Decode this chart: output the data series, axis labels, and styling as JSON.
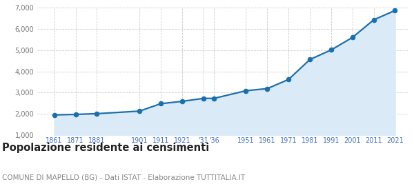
{
  "years": [
    1861,
    1871,
    1881,
    1901,
    1911,
    1921,
    1931,
    1936,
    1951,
    1961,
    1971,
    1981,
    1991,
    2001,
    2011,
    2021
  ],
  "population": [
    1950,
    1975,
    2010,
    2130,
    2480,
    2590,
    2730,
    2730,
    3090,
    3190,
    3620,
    4560,
    5010,
    5600,
    6430,
    6870
  ],
  "ylim": [
    1000,
    7000
  ],
  "yticks": [
    1000,
    2000,
    3000,
    4000,
    5000,
    6000,
    7000
  ],
  "xlim_left": 1853,
  "xlim_right": 2027,
  "line_color": "#1a6faf",
  "fill_color": "#daeaf6",
  "marker_color": "#1a6faf",
  "bg_color": "#ffffff",
  "grid_color": "#cccccc",
  "title": "Popolazione residente ai censimenti",
  "subtitle": "COMUNE DI MAPELLO (BG) - Dati ISTAT - Elaborazione TUTTITALIA.IT",
  "title_color": "#222222",
  "subtitle_color": "#888888",
  "axis_tick_color": "#4472c4",
  "ytick_color": "#777777",
  "title_fontsize": 10.5,
  "subtitle_fontsize": 7.5,
  "tick_fontsize": 7,
  "line_width": 1.6,
  "marker_size": 20
}
